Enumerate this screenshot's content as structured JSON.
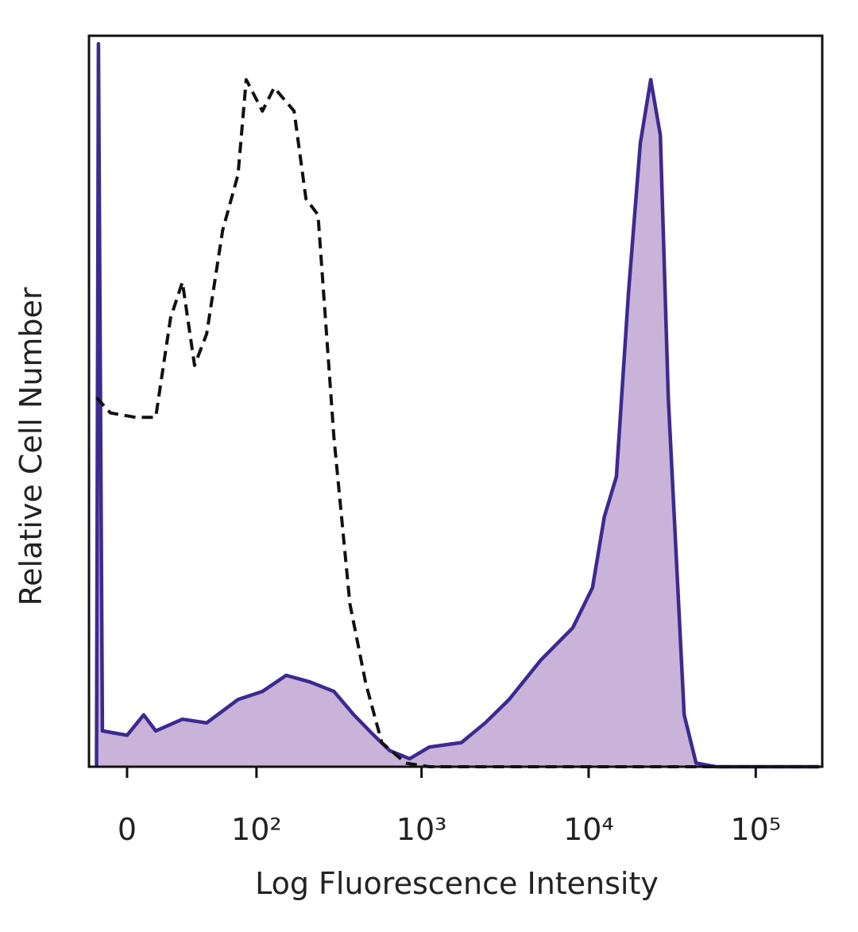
{
  "chart_data": {
    "type": "histogram-overlay",
    "xlabel": "Log Fluorescence Intensity",
    "ylabel": "Relative Cell Number",
    "xscale": "biexponential",
    "xlim": [
      -19,
      250000
    ],
    "ylim": [
      0,
      100
    ],
    "xticks": [
      0,
      {
        "value": 100,
        "label": "10²"
      },
      {
        "value": 1000,
        "label": "10³"
      },
      {
        "value": 10000,
        "label": "10⁴"
      },
      {
        "value": 100000,
        "label": "10⁵"
      }
    ],
    "series": [
      {
        "color": "#3d2a8f",
        "fill": "#c9b3d9",
        "x": [
          -15,
          -14,
          -12,
          0,
          8,
          14,
          29,
          46,
          76,
          109,
          153,
          214,
          298,
          393,
          518,
          645,
          848,
          1114,
          1730,
          2405,
          3340,
          5176,
          8030,
          10550,
          12420,
          14670,
          17300,
          20380,
          23530,
          26850,
          29960,
          33420,
          37300,
          43940,
          57800,
          240000
        ],
        "values": [
          0,
          98.9,
          4.9,
          4.3,
          7.1,
          4.9,
          6.5,
          6.0,
          9.2,
          10.3,
          12.5,
          11.6,
          10.3,
          7.1,
          4.3,
          2.2,
          1.1,
          2.7,
          3.3,
          6.0,
          9.2,
          14.6,
          19.0,
          24.5,
          34.2,
          39.7,
          64.7,
          85.3,
          94.0,
          86.4,
          50.5,
          28.8,
          7.1,
          0.5,
          0,
          0
        ]
      },
      {
        "color": "#111111",
        "dash": true,
        "x": [
          -15,
          -8,
          4,
          14,
          22,
          29,
          37,
          46,
          60,
          76,
          86,
          109,
          129,
          171,
          202,
          239,
          298,
          372,
          463,
          578,
          803,
          1114,
          240000
        ],
        "values": [
          50.5,
          48.4,
          47.8,
          47.8,
          61.4,
          66.3,
          54.9,
          59.2,
          73.4,
          81.0,
          94.0,
          89.7,
          92.9,
          89.7,
          77.7,
          75.5,
          45.1,
          22.3,
          11.4,
          3.3,
          0.5,
          0,
          0
        ]
      }
    ]
  }
}
